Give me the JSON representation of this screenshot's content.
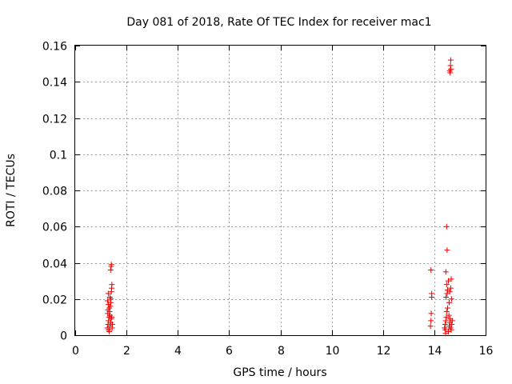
{
  "chart_data": {
    "type": "scatter",
    "title": "Day 081 of 2018, Rate Of TEC Index for receiver mac1",
    "xlabel": "GPS time / hours",
    "ylabel": "ROTI / TECUs",
    "xlim": [
      0,
      16
    ],
    "ylim": [
      0,
      0.16
    ],
    "xticks": [
      "0",
      "2",
      "4",
      "6",
      "8",
      "10",
      "12",
      "14",
      "16"
    ],
    "yticks": [
      "0",
      "0.02",
      "0.04",
      "0.06",
      "0.08",
      "0.1",
      "0.12",
      "0.14",
      "0.16"
    ],
    "grid": true,
    "marker": "+",
    "color": "#ee0000",
    "series": [
      {
        "points": [
          [
            1.25,
            0.004
          ],
          [
            1.28,
            0.006
          ],
          [
            1.3,
            0.008
          ],
          [
            1.32,
            0.01
          ],
          [
            1.27,
            0.012
          ],
          [
            1.33,
            0.015
          ],
          [
            1.3,
            0.017
          ],
          [
            1.26,
            0.019
          ],
          [
            1.35,
            0.021
          ],
          [
            1.29,
            0.023
          ],
          [
            1.36,
            0.005
          ],
          [
            1.38,
            0.007
          ],
          [
            1.4,
            0.009
          ],
          [
            1.31,
            0.003
          ],
          [
            1.34,
            0.013
          ],
          [
            1.37,
            0.016
          ],
          [
            1.39,
            0.018
          ],
          [
            1.41,
            0.024
          ],
          [
            1.42,
            0.026
          ],
          [
            1.43,
            0.028
          ],
          [
            1.38,
            0.036
          ],
          [
            1.4,
            0.038
          ],
          [
            1.41,
            0.039
          ],
          [
            1.36,
            0.011
          ],
          [
            1.44,
            0.004
          ],
          [
            1.45,
            0.006
          ],
          [
            1.33,
            0.002
          ],
          [
            1.28,
            0.014
          ],
          [
            1.42,
            0.01
          ],
          [
            1.39,
            0.02
          ],
          [
            13.85,
            0.005
          ],
          [
            13.87,
            0.008
          ],
          [
            13.88,
            0.012
          ],
          [
            13.9,
            0.021
          ],
          [
            13.9,
            0.023
          ],
          [
            13.87,
            0.036
          ],
          [
            14.4,
            0.004
          ],
          [
            14.42,
            0.006
          ],
          [
            14.45,
            0.008
          ],
          [
            14.47,
            0.01
          ],
          [
            14.43,
            0.003
          ],
          [
            14.48,
            0.013
          ],
          [
            14.46,
            0.021
          ],
          [
            14.5,
            0.023
          ],
          [
            14.52,
            0.025
          ],
          [
            14.48,
            0.028
          ],
          [
            14.55,
            0.03
          ],
          [
            14.45,
            0.035
          ],
          [
            14.5,
            0.047
          ],
          [
            14.48,
            0.06
          ],
          [
            14.55,
            0.002
          ],
          [
            14.58,
            0.005
          ],
          [
            14.6,
            0.007
          ],
          [
            14.62,
            0.009
          ],
          [
            14.57,
            0.011
          ],
          [
            14.6,
            0.024
          ],
          [
            14.64,
            0.026
          ],
          [
            14.66,
            0.031
          ],
          [
            14.63,
            0.004
          ],
          [
            14.68,
            0.006
          ],
          [
            14.7,
            0.008
          ],
          [
            14.62,
            0.145
          ],
          [
            14.6,
            0.146
          ],
          [
            14.65,
            0.147
          ],
          [
            14.63,
            0.149
          ],
          [
            14.64,
            0.152
          ],
          [
            14.52,
            0.015
          ],
          [
            14.58,
            0.018
          ],
          [
            14.67,
            0.02
          ],
          [
            14.44,
            0.001
          ],
          [
            14.66,
            0.003
          ]
        ]
      }
    ]
  }
}
